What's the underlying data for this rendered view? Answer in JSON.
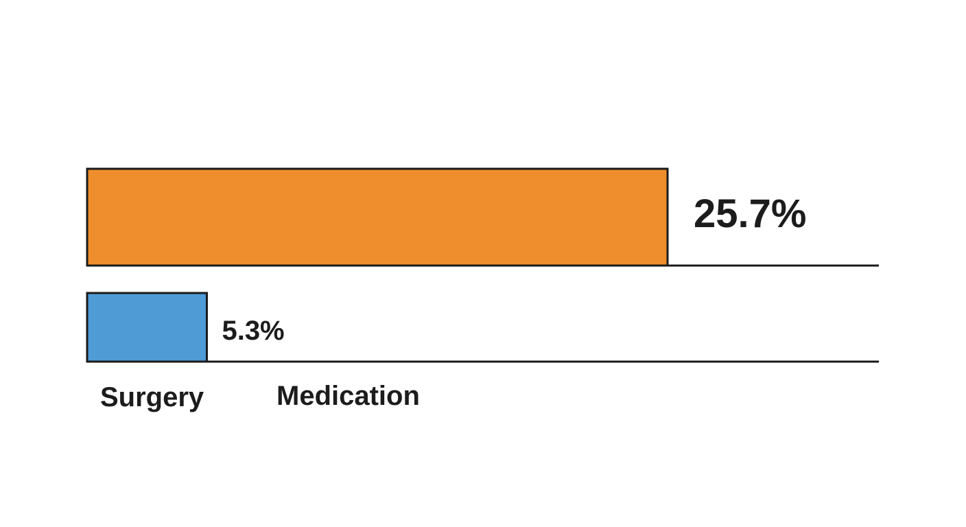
{
  "chart_data": {
    "type": "bar",
    "orientation": "horizontal",
    "categories": [
      "Surgery",
      "Medication"
    ],
    "values": [
      25.7,
      5.3
    ],
    "value_labels": [
      "25.7%",
      "5.3%"
    ],
    "colors": [
      "#ee8e2d",
      "#4f9bd6"
    ],
    "title": "",
    "xlabel": "",
    "ylabel": "",
    "grid": false,
    "legend": "none"
  }
}
